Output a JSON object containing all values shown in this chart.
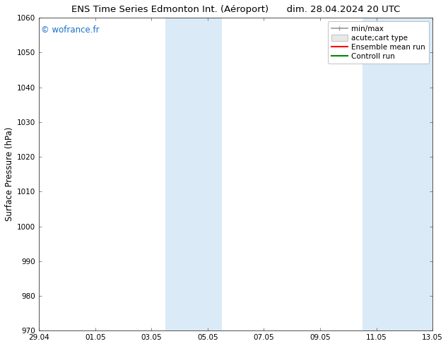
{
  "title": "ENS Time Series Edmonton Int. (Aéroport)      dim. 28.04.2024 20 UTC",
  "ylabel": "Surface Pressure (hPa)",
  "ylim": [
    970,
    1060
  ],
  "yticks": [
    970,
    980,
    990,
    1000,
    1010,
    1020,
    1030,
    1040,
    1050,
    1060
  ],
  "xtick_labels": [
    "29.04",
    "01.05",
    "03.05",
    "05.05",
    "07.05",
    "09.05",
    "11.05",
    "13.05"
  ],
  "xtick_positions": [
    0,
    2,
    4,
    6,
    8,
    10,
    12,
    14
  ],
  "xlim": [
    0,
    14
  ],
  "watermark": "© wofrance.fr",
  "watermark_color": "#1a6fcc",
  "shade_regions": [
    {
      "start": 4.5,
      "end": 6.5
    },
    {
      "start": 11.5,
      "end": 14.0
    }
  ],
  "shade_color": "#daeaf7",
  "background_color": "#ffffff",
  "legend_entries": [
    {
      "label": "min/max",
      "color": "#999999"
    },
    {
      "label": "acute;cart type",
      "color": "#cccccc"
    },
    {
      "label": "Ensemble mean run",
      "color": "#ff0000"
    },
    {
      "label": "Controll run",
      "color": "#008800"
    }
  ],
  "title_fontsize": 9.5,
  "axis_label_fontsize": 8.5,
  "tick_fontsize": 7.5,
  "legend_fontsize": 7.5
}
